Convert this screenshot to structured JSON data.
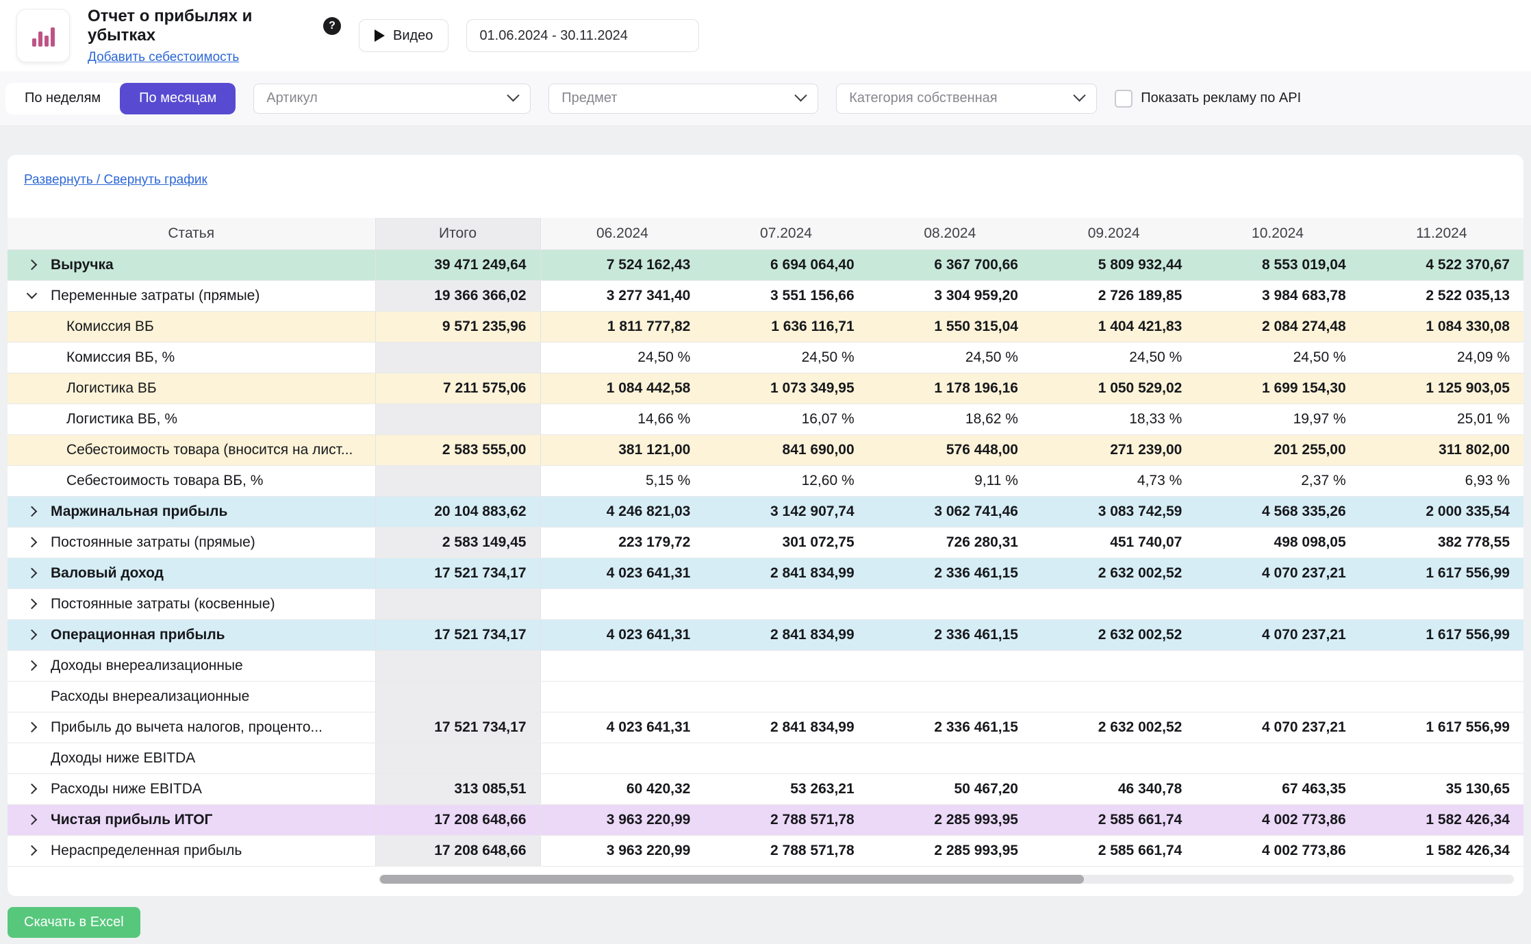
{
  "colors": {
    "accent": "#584bd2",
    "link": "#2c67d6",
    "page_bg": "#eef0f1",
    "green_row": "#c8e9da",
    "cream_row": "#fcf3d8",
    "blue_row": "#d6edf5",
    "purple_row": "#ecd9f8",
    "total_gray": "#ececee",
    "excel_green": "#57c77c",
    "logo_pink": "#bd5485"
  },
  "header": {
    "title": "Отчет о прибылях и убытках",
    "help": "?",
    "add_cost_link": "Добавить себестоимость",
    "video_button": "Видео",
    "date_range": "01.06.2024 - 30.11.2024"
  },
  "filters": {
    "by_weeks": "По неделям",
    "by_months": "По месяцам",
    "article_placeholder": "Артикул",
    "subject_placeholder": "Предмет",
    "category_placeholder": "Категория собственная",
    "show_ads_api": "Показать рекламу по API"
  },
  "chart_toggle": "Развернуть / Свернуть график",
  "table": {
    "columns": [
      "Статья",
      "Итого",
      "06.2024",
      "07.2024",
      "08.2024",
      "09.2024",
      "10.2024",
      "11.2024"
    ],
    "rows": [
      {
        "label": "Выручка",
        "style": "green",
        "chevron": "right",
        "level": 0,
        "cells": [
          "39 471 249,64",
          "7 524 162,43",
          "6 694 064,40",
          "6 367 700,66",
          "5 809 932,44",
          "8 553 019,04",
          "4 522 370,67"
        ]
      },
      {
        "label": "Переменные затраты (прямые)",
        "style": "white",
        "chevron": "down",
        "level": 0,
        "cells": [
          "19 366 366,02",
          "3 277 341,40",
          "3 551 156,66",
          "3 304 959,20",
          "2 726 189,85",
          "3 984 683,78",
          "2 522 035,13"
        ]
      },
      {
        "label": "Комиссия ВБ",
        "style": "cream",
        "level": 1,
        "cells": [
          "9 571 235,96",
          "1 811 777,82",
          "1 636 116,71",
          "1 550 315,04",
          "1 404 421,83",
          "2 084 274,48",
          "1 084 330,08"
        ]
      },
      {
        "label": "Комиссия ВБ, %",
        "style": "white",
        "level": 1,
        "percent": true,
        "cells": [
          "",
          "24,50 %",
          "24,50 %",
          "24,50 %",
          "24,50 %",
          "24,50 %",
          "24,09 %"
        ]
      },
      {
        "label": "Логистика ВБ",
        "style": "cream",
        "level": 1,
        "cells": [
          "7 211 575,06",
          "1 084 442,58",
          "1 073 349,95",
          "1 178 196,16",
          "1 050 529,02",
          "1 699 154,30",
          "1 125 903,05"
        ]
      },
      {
        "label": "Логистика ВБ, %",
        "style": "white",
        "level": 1,
        "percent": true,
        "cells": [
          "",
          "14,66 %",
          "16,07 %",
          "18,62 %",
          "18,33 %",
          "19,97 %",
          "25,01 %"
        ]
      },
      {
        "label": "Себестоимость товара (вносится на лист...",
        "style": "cream",
        "level": 1,
        "cells": [
          "2 583 555,00",
          "381 121,00",
          "841 690,00",
          "576 448,00",
          "271 239,00",
          "201 255,00",
          "311 802,00"
        ]
      },
      {
        "label": "Себестоимость товара ВБ, %",
        "style": "white",
        "level": 1,
        "percent": true,
        "cells": [
          "",
          "5,15 %",
          "12,60 %",
          "9,11 %",
          "4,73 %",
          "2,37 %",
          "6,93 %"
        ]
      },
      {
        "label": "Маржинальная прибыль",
        "style": "blue",
        "chevron": "right",
        "level": 0,
        "cells": [
          "20 104 883,62",
          "4 246 821,03",
          "3 142 907,74",
          "3 062 741,46",
          "3 083 742,59",
          "4 568 335,26",
          "2 000 335,54"
        ]
      },
      {
        "label": "Постоянные затраты (прямые)",
        "style": "white",
        "chevron": "right",
        "level": 0,
        "cells": [
          "2 583 149,45",
          "223 179,72",
          "301 072,75",
          "726 280,31",
          "451 740,07",
          "498 098,05",
          "382 778,55"
        ]
      },
      {
        "label": "Валовый доход",
        "style": "blue",
        "chevron": "right",
        "level": 0,
        "cells": [
          "17 521 734,17",
          "4 023 641,31",
          "2 841 834,99",
          "2 336 461,15",
          "2 632 002,52",
          "4 070 237,21",
          "1 617 556,99"
        ]
      },
      {
        "label": "Постоянные затраты (косвенные)",
        "style": "white",
        "chevron": "right",
        "level": 0,
        "cells": [
          "",
          "",
          "",
          "",
          "",
          "",
          ""
        ]
      },
      {
        "label": "Операционная прибыль",
        "style": "blue",
        "chevron": "right",
        "level": 0,
        "cells": [
          "17 521 734,17",
          "4 023 641,31",
          "2 841 834,99",
          "2 336 461,15",
          "2 632 002,52",
          "4 070 237,21",
          "1 617 556,99"
        ]
      },
      {
        "label": "Доходы внереализационные",
        "style": "white",
        "chevron": "right",
        "level": 0,
        "cells": [
          "",
          "",
          "",
          "",
          "",
          "",
          ""
        ]
      },
      {
        "label": "Расходы внереализационные",
        "style": "white",
        "level": 0,
        "cells": [
          "",
          "",
          "",
          "",
          "",
          "",
          ""
        ]
      },
      {
        "label": "Прибыль до вычета налогов, проценто...",
        "style": "white",
        "chevron": "right",
        "level": 0,
        "cells": [
          "17 521 734,17",
          "4 023 641,31",
          "2 841 834,99",
          "2 336 461,15",
          "2 632 002,52",
          "4 070 237,21",
          "1 617 556,99"
        ]
      },
      {
        "label": "Доходы ниже EBITDA",
        "style": "white",
        "level": 0,
        "cells": [
          "",
          "",
          "",
          "",
          "",
          "",
          ""
        ]
      },
      {
        "label": "Расходы ниже EBITDA",
        "style": "white",
        "chevron": "right",
        "level": 0,
        "cells": [
          "313 085,51",
          "60 420,32",
          "53 263,21",
          "50 467,20",
          "46 340,78",
          "67 463,35",
          "35 130,65"
        ]
      },
      {
        "label": "Чистая прибыль ИТОГ",
        "style": "purple",
        "chevron": "right",
        "level": 0,
        "cells": [
          "17 208 648,66",
          "3 963 220,99",
          "2 788 571,78",
          "2 285 993,95",
          "2 585 661,74",
          "4 002 773,86",
          "1 582 426,34"
        ]
      },
      {
        "label": "Нераспределенная прибыль",
        "style": "white",
        "chevron": "right",
        "level": 0,
        "cells": [
          "17 208 648,66",
          "3 963 220,99",
          "2 788 571,78",
          "2 285 993,95",
          "2 585 661,74",
          "4 002 773,86",
          "1 582 426,34"
        ]
      }
    ]
  },
  "footer": {
    "download_excel": "Скачать в Excel"
  }
}
